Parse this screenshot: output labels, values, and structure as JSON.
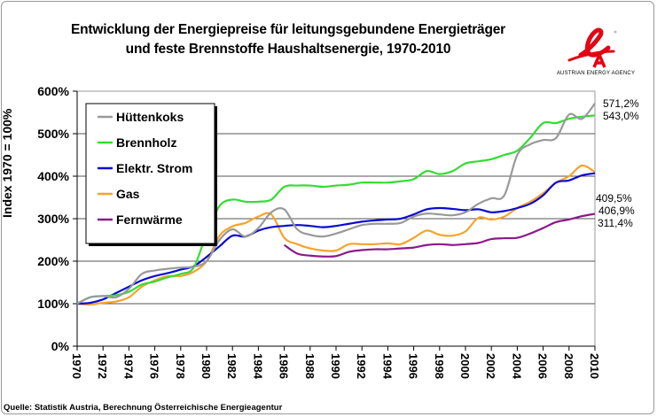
{
  "header": {
    "title_line1": "Entwicklung der Energiepreise für leitungsgebundene Energieträger",
    "title_line2": "und feste Brennstoffe Haushaltsenergie, 1970-2010",
    "logo_text": "AUSTRIAN ENERGY AGENCY",
    "logo_color": "#e30613"
  },
  "footer": {
    "source": "Quelle: Statistik Austria, Berechnung Österreichische Energieagentur"
  },
  "chart_data": {
    "type": "line",
    "title": "Entwicklung der Energiepreise für leitungsgebundene Energieträger und feste Brennstoffe Haushaltsenergie, 1970-2010",
    "xlabel": "",
    "ylabel": "Index 1970 = 100%",
    "ylim": [
      0,
      600
    ],
    "xlim": [
      1970,
      2010
    ],
    "yticks": [
      0,
      100,
      200,
      300,
      400,
      500,
      600
    ],
    "ytick_labels": [
      "0%",
      "100%",
      "200%",
      "300%",
      "400%",
      "500%",
      "600%"
    ],
    "xticks": [
      1970,
      1972,
      1974,
      1976,
      1978,
      1980,
      1982,
      1984,
      1986,
      1988,
      1990,
      1992,
      1994,
      1996,
      1998,
      2000,
      2002,
      2004,
      2006,
      2008,
      2010
    ],
    "grid": "horizontal",
    "legend": "top-left",
    "x": [
      1970,
      1971,
      1972,
      1973,
      1974,
      1975,
      1976,
      1977,
      1978,
      1979,
      1980,
      1981,
      1982,
      1983,
      1984,
      1985,
      1986,
      1987,
      1988,
      1989,
      1990,
      1991,
      1992,
      1993,
      1994,
      1995,
      1996,
      1997,
      1998,
      1999,
      2000,
      2001,
      2002,
      2003,
      2004,
      2005,
      2006,
      2007,
      2008,
      2009,
      2010
    ],
    "series": [
      {
        "name": "Hüttenkoks",
        "color": "#999999",
        "values": [
          100,
          115,
          118,
          115,
          135,
          170,
          178,
          182,
          185,
          187,
          200,
          250,
          275,
          258,
          278,
          315,
          322,
          275,
          262,
          258,
          265,
          275,
          285,
          288,
          288,
          290,
          305,
          312,
          310,
          308,
          315,
          335,
          348,
          355,
          450,
          475,
          485,
          490,
          545,
          535,
          571.2
        ],
        "end_label": "571,2%"
      },
      {
        "name": "Brennholz",
        "color": "#33dd33",
        "values": [
          100,
          115,
          118,
          120,
          128,
          145,
          152,
          162,
          170,
          185,
          265,
          330,
          345,
          340,
          340,
          345,
          375,
          378,
          378,
          375,
          378,
          380,
          385,
          385,
          385,
          388,
          393,
          412,
          405,
          412,
          430,
          435,
          440,
          450,
          460,
          490,
          525,
          525,
          535,
          540,
          543.0
        ],
        "end_label": "543,0%"
      },
      {
        "name": "Elektr. Strom",
        "color": "#0a0ad2",
        "values": [
          100,
          102,
          110,
          125,
          140,
          155,
          165,
          172,
          180,
          188,
          210,
          235,
          260,
          258,
          272,
          280,
          283,
          285,
          283,
          280,
          283,
          288,
          293,
          296,
          298,
          300,
          310,
          322,
          325,
          323,
          320,
          322,
          315,
          318,
          325,
          335,
          355,
          385,
          390,
          402,
          406.9
        ],
        "end_label": "406,9%"
      },
      {
        "name": "Gas",
        "color": "#f7a32a",
        "values": [
          100,
          98,
          102,
          105,
          115,
          140,
          155,
          165,
          165,
          175,
          200,
          260,
          282,
          290,
          305,
          310,
          255,
          240,
          230,
          225,
          225,
          240,
          240,
          240,
          242,
          240,
          255,
          272,
          262,
          260,
          270,
          302,
          298,
          305,
          325,
          340,
          360,
          385,
          400,
          425,
          409.5
        ],
        "end_label": "409,5%"
      },
      {
        "name": "Fernwärme",
        "color": "#8b1a8b",
        "values": [
          null,
          null,
          null,
          null,
          null,
          null,
          null,
          null,
          null,
          null,
          null,
          null,
          null,
          null,
          null,
          null,
          238,
          218,
          213,
          211,
          212,
          222,
          226,
          228,
          228,
          230,
          232,
          238,
          240,
          238,
          240,
          243,
          252,
          254,
          255,
          265,
          278,
          292,
          298,
          306,
          311.4
        ],
        "end_label": "311,4%"
      }
    ]
  }
}
